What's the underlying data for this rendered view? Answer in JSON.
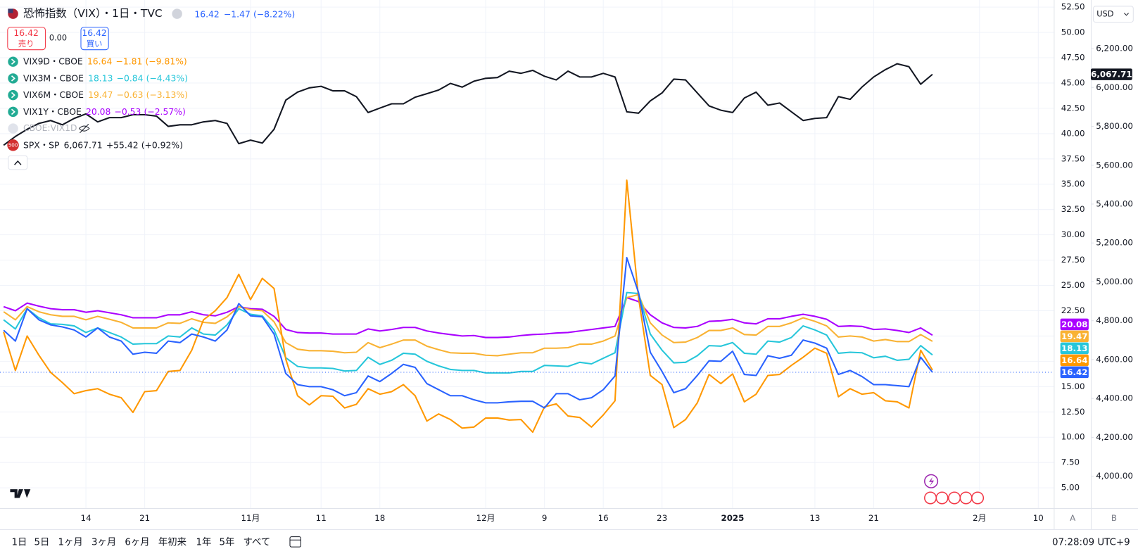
{
  "chart_data": {
    "type": "line",
    "legend_hidden": "CBOE:VIX1D",
    "categories": [
      null,
      null,
      null,
      null,
      null,
      null,
      null,
      "14",
      null,
      null,
      null,
      null,
      "21",
      null,
      null,
      null,
      null,
      null,
      null,
      null,
      null,
      "11月",
      null,
      null,
      null,
      null,
      null,
      "11",
      null,
      null,
      null,
      null,
      "18",
      null,
      null,
      null,
      null,
      null,
      null,
      null,
      null,
      "12月",
      null,
      null,
      null,
      null,
      "9",
      null,
      null,
      null,
      null,
      "16",
      null,
      null,
      null,
      null,
      "23",
      null,
      null,
      null,
      null,
      null,
      "2025",
      null,
      null,
      null,
      null,
      null,
      null,
      "13",
      null,
      null,
      null,
      null,
      "21",
      null,
      null,
      null,
      null,
      null,
      null,
      null,
      null,
      "2月",
      null,
      null,
      null,
      null,
      "10"
    ],
    "ylim": [
      3,
      53.2
    ],
    "yticks": [
      {
        "value": 5,
        "label": "5.00"
      },
      {
        "value": 7.5,
        "label": "7.50"
      },
      {
        "value": 10,
        "label": "10.00"
      },
      {
        "value": 12.5,
        "label": "12.50"
      },
      {
        "value": 15,
        "label": "15.00"
      },
      {
        "value": 17.5,
        "label": "17.50"
      },
      {
        "value": 20,
        "label": "20.00"
      },
      {
        "value": 22.5,
        "label": "22.50"
      },
      {
        "value": 25,
        "label": "25.00"
      },
      {
        "value": 27.5,
        "label": "27.50"
      },
      {
        "value": 30,
        "label": "30.00"
      },
      {
        "value": 32.5,
        "label": "32.50"
      },
      {
        "value": 35,
        "label": "35.00"
      },
      {
        "value": 37.5,
        "label": "37.50"
      },
      {
        "value": 40,
        "label": "40.00"
      },
      {
        "value": 42.5,
        "label": "42.50"
      },
      {
        "value": 45,
        "label": "45.00"
      },
      {
        "value": 47.5,
        "label": "47.50"
      },
      {
        "value": 50,
        "label": "50.00"
      },
      {
        "value": 52.5,
        "label": "52.50"
      }
    ],
    "y2lim": [
      3836,
      6450
    ],
    "y2ticks": [
      {
        "value": 4000,
        "label": "4,000.00"
      },
      {
        "value": 4200,
        "label": "4,200.00"
      },
      {
        "value": 4400,
        "label": "4,400.00"
      },
      {
        "value": 4600,
        "label": "4,600.00"
      },
      {
        "value": 4800,
        "label": "4,800.00"
      },
      {
        "value": 5000,
        "label": "5,000.00"
      },
      {
        "value": 5200,
        "label": "5,200.00"
      },
      {
        "value": 5400,
        "label": "5,400.00"
      },
      {
        "value": 5600,
        "label": "5,600.00"
      },
      {
        "value": 5800,
        "label": "5,800.00"
      },
      {
        "value": 6000,
        "label": "6,000.00"
      },
      {
        "value": 6200,
        "label": "6,200.00"
      }
    ],
    "grid": true,
    "series": [
      {
        "name": "恐怖指数（VIX）・1日・TVC",
        "color": "#2962ff",
        "last": "16.42",
        "change": "−1.47",
        "change_pct": "(−8.22%)",
        "values": [
          20.57,
          19.5,
          22.7,
          21.6,
          21.1,
          20.9,
          20.6,
          19.9,
          20.8,
          19.9,
          19.5,
          18.2,
          18.4,
          18.3,
          19.5,
          19.35,
          20.2,
          19.9,
          19.5,
          20.6,
          23.2,
          22.0,
          21.9,
          20.2,
          16.3,
          15.2,
          15.0,
          15.0,
          14.7,
          14.1,
          14.4,
          16.05,
          15.5,
          16.3,
          17.2,
          16.9,
          15.3,
          14.7,
          14.1,
          14.1,
          13.7,
          13.4,
          13.4,
          13.5,
          13.55,
          13.55,
          12.9,
          14.3,
          14.3,
          13.7,
          13.9,
          14.7,
          16.05,
          27.75,
          24.3,
          18.4,
          16.5,
          14.4,
          14.8,
          16.1,
          17.55,
          17.5,
          18.5,
          16.2,
          16.1,
          18.05,
          17.8,
          18.1,
          19.6,
          19.3,
          18.8,
          16.2,
          16.6,
          16.0,
          15.2,
          15.2,
          15.1,
          15.0,
          17.9,
          16.42,
          null,
          null,
          null,
          null,
          null,
          null,
          null,
          null,
          null
        ]
      },
      {
        "name": "VIX9D・CBOE",
        "color": "#ff9800",
        "last": "16.64",
        "change": "−1.81",
        "change_pct": "(−9.81%)",
        "values": [
          20.4,
          16.6,
          20.0,
          18.1,
          16.4,
          15.4,
          14.3,
          14.6,
          14.8,
          14.25,
          13.9,
          12.45,
          14.5,
          14.6,
          16.5,
          16.6,
          18.6,
          21.6,
          22.5,
          23.8,
          26.1,
          23.6,
          25.7,
          24.7,
          17.7,
          14.1,
          13.2,
          14.1,
          14.05,
          12.9,
          13.25,
          14.8,
          14.25,
          14.5,
          15.2,
          14.1,
          11.6,
          12.3,
          11.75,
          10.9,
          11.0,
          11.9,
          11.9,
          11.7,
          11.75,
          10.5,
          13.0,
          13.3,
          12.1,
          11.95,
          11.0,
          12.2,
          13.6,
          35.4,
          23.8,
          16.1,
          15.2,
          10.95,
          11.75,
          13.4,
          16.2,
          15.3,
          16.25,
          13.5,
          14.25,
          16.1,
          16.2,
          17.1,
          17.9,
          18.8,
          18.3,
          14.0,
          14.8,
          14.25,
          14.4,
          13.6,
          13.5,
          12.9,
          18.6,
          16.64,
          null,
          null,
          null,
          null,
          null,
          null,
          null,
          null,
          null
        ]
      },
      {
        "name": "VIX3M・CBOE",
        "color": "#26c6da",
        "last": "18.13",
        "change": "−0.84",
        "change_pct": "(−4.43%)",
        "values": [
          21.6,
          20.7,
          22.7,
          21.8,
          21.2,
          21.15,
          21.0,
          20.35,
          20.8,
          20.35,
          19.9,
          19.2,
          19.25,
          19.25,
          20.0,
          19.9,
          20.8,
          20.2,
          20.1,
          21.1,
          22.7,
          22.15,
          22.0,
          20.6,
          17.85,
          17.0,
          16.85,
          16.85,
          16.8,
          16.55,
          16.6,
          17.9,
          17.2,
          17.6,
          18.3,
          18.2,
          17.5,
          17.05,
          16.7,
          16.6,
          16.6,
          16.35,
          16.35,
          16.35,
          16.5,
          16.5,
          17.1,
          17.05,
          17.0,
          17.4,
          17.25,
          17.8,
          18.35,
          24.3,
          24.2,
          20.2,
          18.6,
          17.35,
          17.4,
          18.05,
          19.05,
          19.0,
          19.35,
          18.3,
          18.2,
          19.5,
          19.4,
          19.85,
          21.0,
          20.6,
          20.1,
          18.3,
          18.4,
          18.35,
          17.85,
          18.0,
          17.6,
          17.7,
          19.05,
          18.13,
          null,
          null,
          null,
          null,
          null,
          null,
          null,
          null,
          null
        ]
      },
      {
        "name": "VIX6M・CBOE",
        "color": "#f9b233",
        "last": "19.47",
        "change": "−0.63",
        "change_pct": "(−3.13%)",
        "values": [
          22.4,
          21.6,
          22.9,
          22.4,
          22.1,
          21.95,
          21.95,
          21.6,
          21.95,
          21.65,
          21.35,
          20.8,
          20.8,
          20.8,
          21.3,
          21.25,
          21.7,
          21.35,
          21.25,
          21.9,
          22.9,
          22.6,
          22.5,
          21.4,
          19.35,
          18.7,
          18.55,
          18.55,
          18.5,
          18.35,
          18.4,
          19.35,
          18.85,
          19.2,
          19.6,
          19.6,
          19.0,
          18.65,
          18.35,
          18.3,
          18.3,
          18.1,
          18.05,
          18.2,
          18.35,
          18.35,
          18.8,
          18.8,
          18.85,
          19.2,
          19.2,
          19.5,
          20.0,
          23.8,
          24.1,
          21.3,
          20.1,
          19.35,
          19.4,
          19.85,
          20.55,
          20.55,
          20.8,
          20.15,
          20.1,
          20.95,
          20.95,
          21.3,
          21.8,
          21.45,
          21.0,
          19.9,
          20.0,
          19.9,
          19.5,
          19.65,
          19.45,
          19.45,
          20.15,
          19.47,
          null,
          null,
          null,
          null,
          null,
          null,
          null,
          null,
          null
        ]
      },
      {
        "name": "VIX1Y・CBOE",
        "color": "#aa00ff",
        "last": "20.08",
        "change": "−0.53",
        "change_pct": "(−2.57%)",
        "values": [
          22.9,
          22.5,
          23.25,
          22.95,
          22.7,
          22.6,
          22.6,
          22.35,
          22.5,
          22.3,
          22.1,
          21.8,
          21.8,
          21.8,
          22.1,
          22.1,
          22.4,
          22.1,
          22.0,
          22.35,
          22.9,
          22.7,
          22.65,
          21.95,
          20.65,
          20.35,
          20.3,
          20.3,
          20.2,
          20.2,
          20.2,
          20.7,
          20.5,
          20.65,
          20.85,
          20.85,
          20.5,
          20.3,
          20.15,
          20.0,
          20.05,
          19.85,
          19.85,
          19.9,
          20.05,
          20.15,
          20.2,
          20.3,
          20.35,
          20.5,
          20.65,
          20.8,
          20.95,
          23.8,
          23.4,
          22.1,
          21.3,
          20.85,
          20.8,
          20.95,
          21.45,
          21.5,
          21.65,
          21.3,
          21.2,
          21.7,
          21.7,
          21.95,
          22.15,
          21.95,
          21.65,
          20.95,
          21.0,
          20.95,
          20.65,
          20.7,
          20.55,
          20.35,
          20.8,
          20.08,
          null,
          null,
          null,
          null,
          null,
          null,
          null,
          null,
          null
        ]
      },
      {
        "name": "SPX・SP",
        "color": "#131722",
        "axis": "y2",
        "badge": "500",
        "last": "6,067.71",
        "change": "+55.42",
        "change_pct": "(+0.92%)",
        "values": [
          5703,
          5748,
          5785,
          5815,
          5830,
          5808,
          5841,
          5864,
          5823,
          5845,
          5845,
          5860,
          5860,
          5853,
          5800,
          5808,
          5808,
          5823,
          5830,
          5815,
          5711,
          5729,
          5714,
          5785,
          5935,
          5976,
          5998,
          6006,
          5983,
          5983,
          5953,
          5871,
          5894,
          5916,
          5916,
          5950,
          5968,
          5987,
          6021,
          6002,
          6032,
          6047,
          6051,
          6084,
          6073,
          6088,
          6058,
          6039,
          6084,
          6054,
          6054,
          6073,
          6054,
          5875,
          5868,
          5931,
          5972,
          6043,
          6039,
          5972,
          5905,
          5883,
          5871,
          5946,
          5976,
          5909,
          5920,
          5875,
          5830,
          5841,
          5845,
          5953,
          5939,
          6002,
          6054,
          6092,
          6122,
          6107,
          6017,
          6067.71,
          null,
          null,
          null,
          null,
          null,
          null,
          null,
          null,
          null
        ]
      }
    ]
  },
  "order": {
    "sell_price": "16.42",
    "sell_label": "売り",
    "spread": "0.00",
    "buy_price": "16.42",
    "buy_label": "買い"
  },
  "currency": "USD",
  "scale_buttons": [
    "A",
    "B"
  ],
  "ranges": [
    "1日",
    "5日",
    "1ヶ月",
    "3ヶ月",
    "6ヶ月",
    "年初来",
    "1年",
    "5年",
    "すべて"
  ],
  "clock": "07:28:09 UTC+9"
}
